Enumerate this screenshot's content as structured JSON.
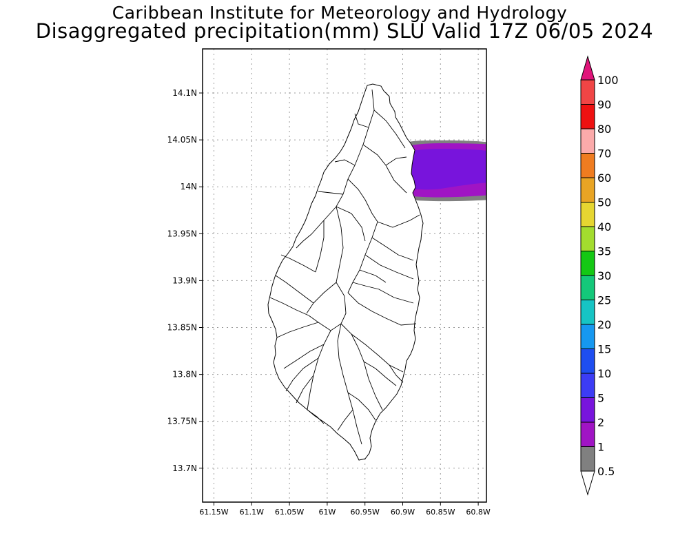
{
  "header": {
    "title": "Caribbean Institute for Meteorology and Hydrology",
    "subtitle": "Disaggregated precipitation(mm) SLU Valid 17Z 06/05 2024"
  },
  "map": {
    "y_ticks": [
      "14.1N",
      "14.05N",
      "14N",
      "13.95N",
      "13.9N",
      "13.85N",
      "13.8N",
      "13.75N",
      "13.7N"
    ],
    "x_ticks": [
      "61.15W",
      "61.1W",
      "61.05W",
      "61W",
      "60.95W",
      "60.9W",
      "60.85W",
      "60.8W"
    ],
    "lat_values": [
      14.1,
      14.05,
      14.0,
      13.95,
      13.9,
      13.85,
      13.8,
      13.75,
      13.7
    ],
    "lon_values": [
      -61.15,
      -61.1,
      -61.05,
      -61.0,
      -60.95,
      -60.9,
      -60.85,
      -60.8
    ]
  },
  "colorbar": {
    "labels": [
      "100",
      "90",
      "80",
      "70",
      "60",
      "50",
      "40",
      "35",
      "30",
      "25",
      "20",
      "15",
      "10",
      "5",
      "2",
      "1",
      "0.5"
    ],
    "colors": {
      "top_arrow": "#e0147a",
      "c90_100": "#f04545",
      "c80_90": "#ee1111",
      "c70_80": "#fbaaaa",
      "c60_70": "#ef7c20",
      "c50_60": "#e8a424",
      "c40_50": "#e6d631",
      "c35_40": "#a3dc2e",
      "c30_35": "#14c814",
      "c25_30": "#14c87a",
      "c20_25": "#16c4c4",
      "c15_20": "#1698f0",
      "c10_15": "#1e4ef0",
      "c5_10": "#3c3cf5",
      "c2_5": "#7814dc",
      "c1_2": "#a014c4",
      "c05_1": "#808080",
      "bottom_arrow": "#ffffff"
    }
  }
}
